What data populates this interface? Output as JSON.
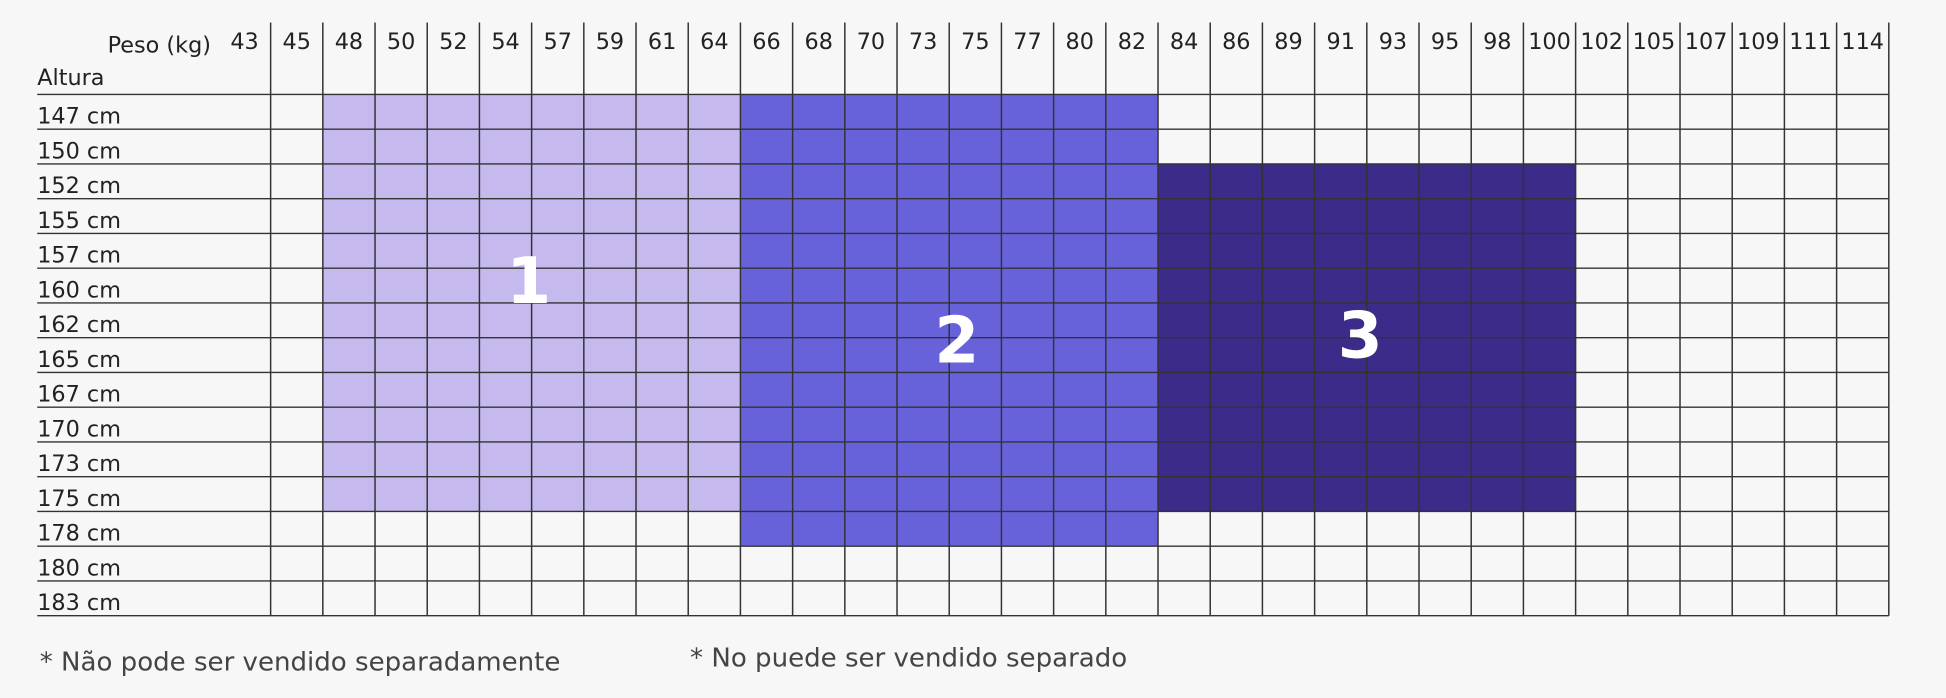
{
  "header": {
    "weight_label": "Peso (kg)",
    "height_label": "Altura"
  },
  "table": {
    "weights": [
      "43",
      "45",
      "48",
      "50",
      "52",
      "54",
      "57",
      "59",
      "61",
      "64",
      "66",
      "68",
      "70",
      "73",
      "75",
      "77",
      "80",
      "82",
      "84",
      "86",
      "89",
      "91",
      "93",
      "95",
      "98",
      "100",
      "102",
      "105",
      "107",
      "109",
      "111",
      "114"
    ],
    "heights": [
      "147 cm",
      "150 cm",
      "152 cm",
      "155 cm",
      "157 cm",
      "160 cm",
      "162 cm",
      "165 cm",
      "167 cm",
      "170 cm",
      "173 cm",
      "175 cm",
      "178 cm",
      "180 cm",
      "183 cm"
    ],
    "zones": [
      {
        "label": "1"
      },
      {
        "label": "2"
      },
      {
        "label": "3"
      }
    ]
  },
  "footer": {
    "note_pt": "* Não pode ser vendido separadamente",
    "note_es": "* No puede ser vendido separado"
  }
}
